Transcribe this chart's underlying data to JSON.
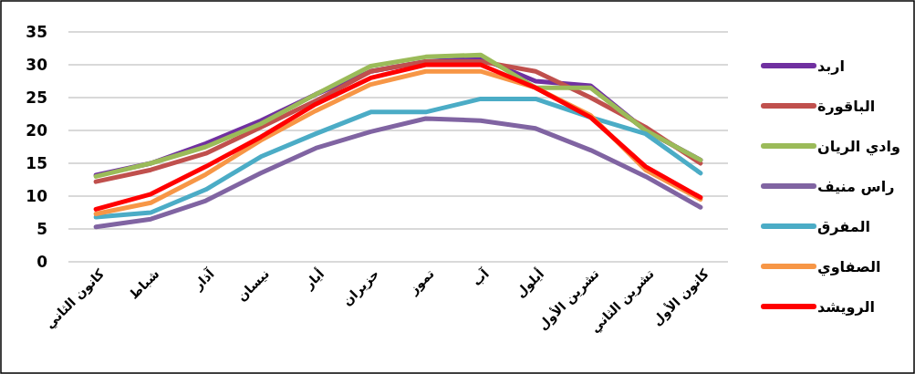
{
  "chart_data": {
    "type": "line",
    "categories": [
      "كانون الثاني",
      "شباط",
      "آذار",
      "نيسان",
      "أيار",
      "حزيران",
      "تموز",
      "آب",
      "أيلول",
      "تشرين الأول",
      "تشرين الثاني",
      "كانون الأول"
    ],
    "series": [
      {
        "name": "اربد",
        "color": "#7030a0",
        "values": [
          13.2,
          15,
          18,
          21.5,
          25.5,
          29,
          30.5,
          31,
          27.5,
          26.8,
          20,
          15.5
        ]
      },
      {
        "name": "الباقورة",
        "color": "#c0504d",
        "values": [
          12.2,
          14,
          16.5,
          20.5,
          24.5,
          29,
          30.5,
          30.5,
          29,
          25,
          20.5,
          15
        ]
      },
      {
        "name": "وادي الريان",
        "color": "#9bbb59",
        "values": [
          13,
          15,
          17.5,
          21,
          25.5,
          29.8,
          31.2,
          31.5,
          26.5,
          26.5,
          20,
          15.5
        ]
      },
      {
        "name": "راس منيف",
        "color": "#8064a2",
        "values": [
          5.3,
          6.5,
          9.3,
          13.5,
          17.3,
          19.8,
          21.8,
          21.5,
          20.3,
          17,
          13,
          8.3
        ]
      },
      {
        "name": "المفرق",
        "color": "#4bacc6",
        "values": [
          6.8,
          7.5,
          11,
          16,
          19.5,
          22.8,
          22.8,
          24.8,
          24.8,
          22,
          19.5,
          13.5
        ]
      },
      {
        "name": "الصفاوي",
        "color": "#f79646",
        "values": [
          7.3,
          9,
          13.3,
          18.5,
          23,
          27,
          29,
          29,
          26.5,
          22.3,
          14,
          9.5
        ]
      },
      {
        "name": "الرويشد",
        "color": "#ff0000",
        "values": [
          8,
          10.3,
          14.5,
          19,
          24,
          28,
          30,
          30,
          26.5,
          22,
          14.5,
          9.8
        ]
      }
    ],
    "ylim": [
      0,
      35
    ],
    "yticks": [
      0,
      5,
      10,
      15,
      20,
      25,
      30,
      35
    ],
    "grid": "y",
    "legend": "right"
  }
}
